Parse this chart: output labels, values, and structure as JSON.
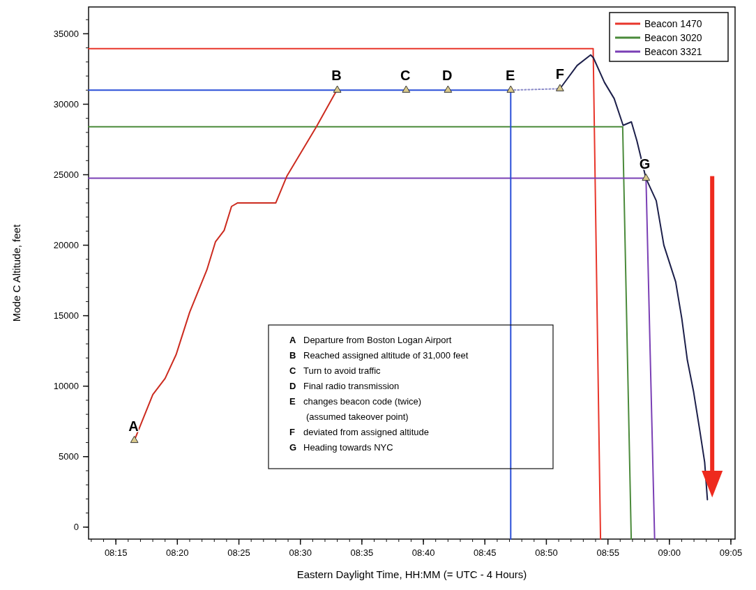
{
  "chart_data": {
    "type": "line",
    "xlabel": "Eastern Daylight Time, HH:MM (= UTC - 4 Hours)",
    "ylabel": "Mode C Altitude, feet",
    "xlim": [
      8.213,
      9.089
    ],
    "ylim": [
      -850,
      36900
    ],
    "xticks": [
      {
        "value": 8.25,
        "label": "08:15"
      },
      {
        "value": 8.3333,
        "label": "08:20"
      },
      {
        "value": 8.4167,
        "label": "08:25"
      },
      {
        "value": 8.5,
        "label": "08:30"
      },
      {
        "value": 8.5833,
        "label": "08:35"
      },
      {
        "value": 8.6667,
        "label": "08:40"
      },
      {
        "value": 8.75,
        "label": "08:45"
      },
      {
        "value": 8.8333,
        "label": "08:50"
      },
      {
        "value": 8.9167,
        "label": "08:55"
      },
      {
        "value": 9,
        "label": "09:00"
      },
      {
        "value": 9.0833,
        "label": "09:05"
      }
    ],
    "yticks": [
      0,
      5000,
      10000,
      15000,
      20000,
      25000,
      30000,
      35000
    ],
    "grid": false,
    "legend": "top right",
    "series": [
      {
        "name": "Beacon 1470",
        "color": "#e8352a",
        "x": [
          8.213,
          8.8967,
          8.9067
        ],
        "values": [
          33950,
          33950,
          -850
        ]
      },
      {
        "name": "Beacon 3020",
        "color": "#4a8a3a",
        "x": [
          8.213,
          8.9367,
          8.9483
        ],
        "values": [
          28400,
          28400,
          -850
        ]
      },
      {
        "name": "Beacon 3321",
        "color": "#7a3fb5",
        "x": [
          8.213,
          8.9683,
          8.98
        ],
        "values": [
          24750,
          24750,
          -850
        ]
      },
      {
        "color": "#2a4fd8",
        "x": [
          8.213,
          8.785,
          8.785
        ],
        "values": [
          31000,
          31000,
          -850
        ]
      },
      {
        "color": "#cc2b1f",
        "x": [
          8.275,
          8.3,
          8.3167,
          8.3317,
          8.35,
          8.3733,
          8.385,
          8.3967,
          8.4067,
          8.415,
          8.4667,
          8.475,
          8.4817,
          8.5217,
          8.5467,
          8.55
        ],
        "values": [
          6150,
          9400,
          10550,
          12250,
          15250,
          18250,
          20250,
          21050,
          22750,
          23000,
          23000,
          24050,
          24900,
          28400,
          30750,
          31000
        ]
      },
      {
        "color": "#8a8ac8",
        "line_style": "dotted",
        "x": [
          8.785,
          8.8517
        ],
        "values": [
          31000,
          31100
        ]
      },
      {
        "color": "#1c1f4a",
        "x": [
          8.8517,
          8.875,
          8.8933,
          8.897,
          8.912,
          8.9252,
          8.9373,
          8.9485,
          8.956,
          8.9682,
          8.9822,
          8.9925,
          9.0085,
          9.0168,
          9.0243,
          9.0328,
          9.0412,
          9.0478,
          9.0515
        ],
        "values": [
          31100,
          32750,
          33500,
          33300,
          31550,
          30400,
          28500,
          28750,
          27400,
          24750,
          23150,
          20000,
          17400,
          14800,
          11850,
          9600,
          6850,
          4600,
          1950
        ]
      },
      {
        "type": "scatter",
        "marker": "triangle",
        "color": "#d9c98c",
        "x": [
          8.275,
          8.55,
          8.6433,
          8.7,
          8.785,
          8.8517,
          8.9683
        ],
        "values": [
          6150,
          31000,
          31000,
          31000,
          31000,
          31100,
          24750
        ]
      }
    ],
    "annotations": [
      {
        "text": "A",
        "x": 8.275,
        "y": 6150
      },
      {
        "text": "B",
        "x": 8.55,
        "y": 31000
      },
      {
        "text": "C",
        "x": 8.6433,
        "y": 31000
      },
      {
        "text": "D",
        "x": 8.7,
        "y": 31000
      },
      {
        "text": "E",
        "x": 8.785,
        "y": 31000
      },
      {
        "text": "F",
        "x": 8.8517,
        "y": 31100
      },
      {
        "text": "G",
        "x": 8.9683,
        "y": 24750
      },
      "A Departure from Boston Logan Airport",
      "B Reached assigned altitude of 31,000 feet",
      "C Turn to avoid traffic",
      "D Final radio transmission",
      "E changes beacon code (twice)",
      "(assumed takeover point)",
      "F deviated from assigned altitude",
      "G Heading towards NYC"
    ]
  }
}
